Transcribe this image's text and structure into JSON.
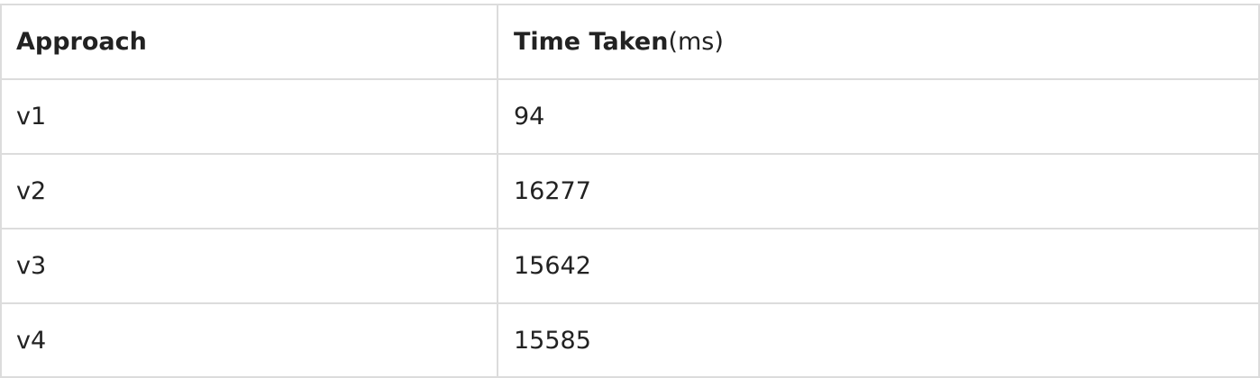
{
  "table": {
    "headers": {
      "approach": "Approach",
      "time_bold": "Time Taken",
      "time_unit": " (ms)"
    },
    "rows": [
      {
        "approach": "v1",
        "time": "94"
      },
      {
        "approach": "v2",
        "time": "16277"
      },
      {
        "approach": "v3",
        "time": "15642"
      },
      {
        "approach": "v4",
        "time": "15585"
      }
    ]
  },
  "colors": {
    "border": "#dcdcdc",
    "text": "#222222",
    "background": "#ffffff"
  }
}
